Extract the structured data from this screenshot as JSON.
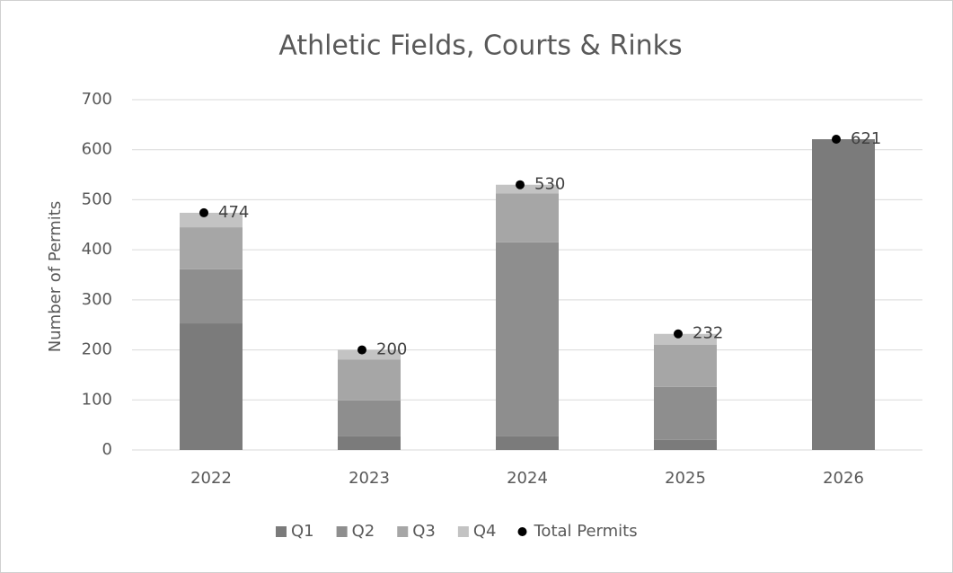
{
  "chart_data": {
    "type": "bar",
    "stacked": true,
    "title": "Athletic Fields, Courts & Rinks",
    "ylabel": "Number of Permits",
    "categories": [
      "2022",
      "2023",
      "2024",
      "2025",
      "2026"
    ],
    "series": [
      {
        "name": "Q1",
        "color": "#7b7b7b",
        "values": [
          253,
          27,
          27,
          20,
          621
        ]
      },
      {
        "name": "Q2",
        "color": "#8e8e8e",
        "values": [
          108,
          72,
          388,
          106,
          0
        ]
      },
      {
        "name": "Q3",
        "color": "#a6a6a6",
        "values": [
          84,
          82,
          98,
          84,
          0
        ]
      },
      {
        "name": "Q4",
        "color": "#c3c3c3",
        "values": [
          29,
          19,
          17,
          22,
          0
        ]
      }
    ],
    "totals": {
      "name": "Total Permits",
      "color": "#000000",
      "values": [
        474,
        200,
        530,
        232,
        621
      ]
    },
    "ylim": [
      0,
      700
    ],
    "yticks": [
      0,
      100,
      200,
      300,
      400,
      500,
      600,
      700
    ],
    "grid": true,
    "legend": "bottom"
  }
}
